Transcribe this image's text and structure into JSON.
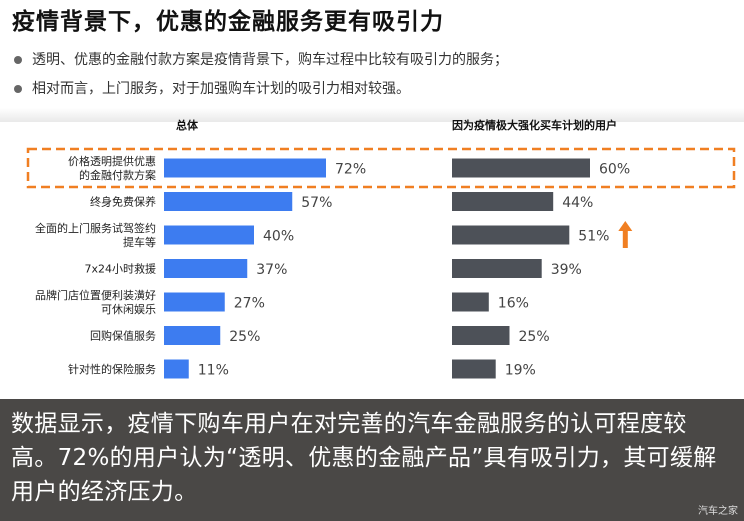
{
  "title": "疫情背景下，优惠的金融服务更有吸引力",
  "bullets": [
    "透明、优惠的金融付款方案是疫情背景下，购车过程中比较有吸引力的服务；",
    "相对而言，上门服务，对于加强购车计划的吸引力相对较强。"
  ],
  "colors": {
    "overall_bar": "#3d7cf0",
    "subgroup_bar": "#4d5158",
    "highlight_border": "#f07f22",
    "arrow": "#f07f22",
    "bottom_bg": "#4a4846"
  },
  "chart_data": {
    "type": "bar",
    "orientation": "horizontal",
    "categories": [
      "价格透明提供优惠\n的金融付款方案",
      "终身免费保养",
      "全面的上门服务试驾签约\n提车等",
      "7x24小时救援",
      "品牌门店位置便利装潢好\n可休闲娱乐",
      "回购保值服务",
      "针对性的保险服务"
    ],
    "series": [
      {
        "name": "总体",
        "values": [
          72,
          57,
          40,
          37,
          27,
          25,
          11
        ]
      },
      {
        "name": "因为疫情极大强化买车计划的用户",
        "values": [
          60,
          44,
          51,
          39,
          16,
          25,
          19
        ]
      }
    ],
    "value_suffix": "%",
    "highlighted_category_index": 0,
    "arrow_category_index": 2,
    "arrow_series_index": 1
  },
  "conclusion": "数据显示，疫情下购车用户在对完善的汽车金融服务的认可程度较高。72%的用户认为“透明、优惠的金融产品”具有吸引力，其可缓解用户的经济压力。",
  "watermark": "汽车之家"
}
